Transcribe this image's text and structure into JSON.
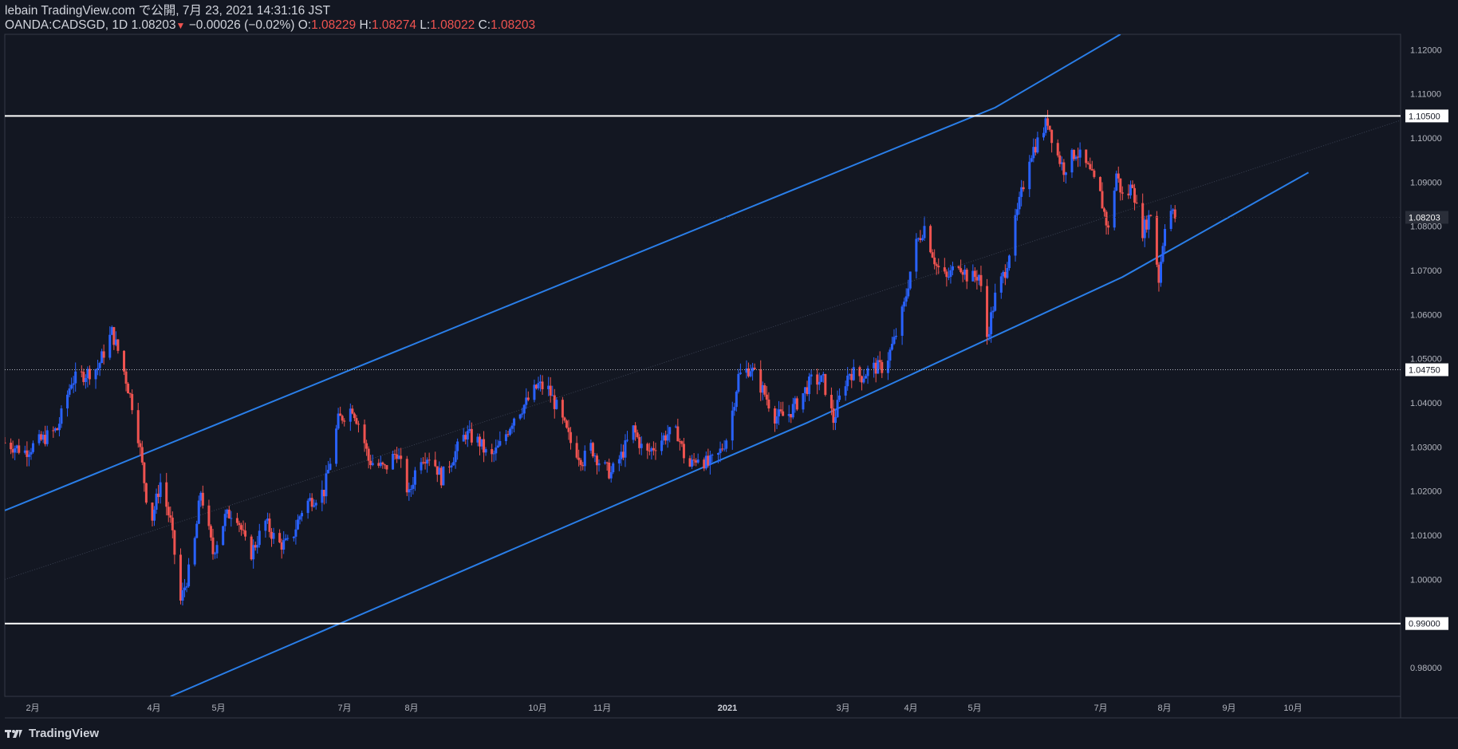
{
  "header": {
    "publish_line": "lebain TradingView.com で公開, 7月 23, 2021 14:31:16 JST",
    "symbol": "OANDA:CADSGD, 1D",
    "last": "1.08203",
    "change_arrow": "▼",
    "change": "−0.00026 (−0.02%)",
    "o_label": "O:",
    "o_value": "1.08229",
    "h_label": "H:",
    "h_value": "1.08274",
    "l_label": "L:",
    "l_value": "1.08022",
    "c_label": "C:",
    "c_value": "1.08203"
  },
  "footer": {
    "logo_text": "TradingView"
  },
  "colors": {
    "background": "#131722",
    "up": "#2962ff",
    "down": "#ef5350",
    "channel": "#2a7ee8",
    "level": "#ffffff"
  },
  "chart_data": {
    "type": "candlestick",
    "symbol": "OANDA:CADSGD",
    "interval": "1D",
    "y_range": [
      0.9735,
      1.1235
    ],
    "y_ticks": [
      "1.12000",
      "1.11000",
      "1.10000",
      "1.09000",
      "1.08000",
      "1.07000",
      "1.06000",
      "1.05000",
      "1.04000",
      "1.03000",
      "1.02000",
      "1.01000",
      "1.00000",
      "0.98000"
    ],
    "x_ticks": [
      {
        "label": "2月"
      },
      {
        "label": "4月"
      },
      {
        "label": "5月"
      },
      {
        "label": "7月"
      },
      {
        "label": "8月"
      },
      {
        "label": "10月"
      },
      {
        "label": "11月"
      },
      {
        "label": "2021",
        "bold": true
      },
      {
        "label": "3月"
      },
      {
        "label": "4月"
      },
      {
        "label": "5月"
      },
      {
        "label": "7月"
      },
      {
        "label": "8月"
      },
      {
        "label": "9月"
      },
      {
        "label": "10月"
      }
    ],
    "horizontal_levels": [
      {
        "price": 1.105,
        "label": "1.10500",
        "style": "solid"
      },
      {
        "price": 0.99,
        "label": "0.99000",
        "style": "solid"
      },
      {
        "price": 1.0475,
        "label": "1.04750",
        "style": "dotted"
      }
    ],
    "current_price": {
      "price": 1.08203,
      "label": "1.08203"
    },
    "channel": {
      "upper": [
        {
          "date": "2020-01-10",
          "price": 1.0156
        },
        {
          "date": "2021-05-14",
          "price": 1.1069
        },
        {
          "date": "2021-07-15",
          "price": 1.1235
        }
      ],
      "lower": [
        {
          "date": "2020-04-01",
          "price": 0.9735
        },
        {
          "date": "2021-02-10",
          "price": 1.0355
        },
        {
          "date": "2021-07-16",
          "price": 1.0685
        },
        {
          "date": "2021-10-16",
          "price": 1.0922
        }
      ]
    },
    "path": [
      [
        "2020-01-10",
        1.031
      ],
      [
        "2020-01-20",
        1.029
      ],
      [
        "2020-02-05",
        1.034
      ],
      [
        "2020-02-12",
        1.045
      ],
      [
        "2020-02-25",
        1.048
      ],
      [
        "2020-03-03",
        1.056
      ],
      [
        "2020-03-08",
        1.049
      ],
      [
        "2020-03-15",
        1.036
      ],
      [
        "2020-03-22",
        1.012
      ],
      [
        "2020-03-27",
        1.022
      ],
      [
        "2020-04-01",
        1.013
      ],
      [
        "2020-04-06",
        0.995
      ],
      [
        "2020-04-12",
        1.005
      ],
      [
        "2020-04-16",
        1.02
      ],
      [
        "2020-04-22",
        1.006
      ],
      [
        "2020-04-28",
        1.014
      ],
      [
        "2020-05-03",
        1.016
      ],
      [
        "2020-05-10",
        1.005
      ],
      [
        "2020-05-18",
        1.013
      ],
      [
        "2020-05-24",
        1.008
      ],
      [
        "2020-05-30",
        1.008
      ],
      [
        "2020-06-06",
        1.017
      ],
      [
        "2020-06-16",
        1.02
      ],
      [
        "2020-06-23",
        1.036
      ],
      [
        "2020-06-30",
        1.039
      ],
      [
        "2020-07-05",
        1.033
      ],
      [
        "2020-07-08",
        1.027
      ],
      [
        "2020-07-16",
        1.025
      ],
      [
        "2020-07-22",
        1.029
      ],
      [
        "2020-07-28",
        1.019
      ],
      [
        "2020-08-02",
        1.028
      ],
      [
        "2020-08-08",
        1.028
      ],
      [
        "2020-08-13",
        1.023
      ],
      [
        "2020-08-19",
        1.028
      ],
      [
        "2020-08-25",
        1.033
      ],
      [
        "2020-09-01",
        1.031
      ],
      [
        "2020-09-06",
        1.027
      ],
      [
        "2020-09-12",
        1.031
      ],
      [
        "2020-09-18",
        1.037
      ],
      [
        "2020-09-24",
        1.04
      ],
      [
        "2020-09-30",
        1.044
      ],
      [
        "2020-10-05",
        1.043
      ],
      [
        "2020-10-10",
        1.038
      ],
      [
        "2020-10-16",
        1.031
      ],
      [
        "2020-10-22",
        1.027
      ],
      [
        "2020-10-26",
        1.03
      ],
      [
        "2020-10-31",
        1.026
      ],
      [
        "2020-11-05",
        1.024
      ],
      [
        "2020-11-10",
        1.028
      ],
      [
        "2020-11-16",
        1.034
      ],
      [
        "2020-11-22",
        1.028
      ],
      [
        "2020-11-28",
        1.031
      ],
      [
        "2020-12-03",
        1.033
      ],
      [
        "2020-12-08",
        1.033
      ],
      [
        "2020-12-13",
        1.025
      ],
      [
        "2020-12-18",
        1.028
      ],
      [
        "2020-12-23",
        1.026
      ],
      [
        "2020-12-28",
        1.028
      ],
      [
        "2021-01-02",
        1.033
      ],
      [
        "2021-01-07",
        1.046
      ],
      [
        "2021-01-13",
        1.048
      ],
      [
        "2021-01-20",
        1.042
      ],
      [
        "2021-01-25",
        1.037
      ],
      [
        "2021-01-31",
        1.037
      ],
      [
        "2021-02-05",
        1.04
      ],
      [
        "2021-02-12",
        1.045
      ],
      [
        "2021-02-18",
        1.045
      ],
      [
        "2021-02-23",
        1.036
      ],
      [
        "2021-02-28",
        1.044
      ],
      [
        "2021-03-03",
        1.047
      ],
      [
        "2021-03-09",
        1.046
      ],
      [
        "2021-03-14",
        1.048
      ],
      [
        "2021-03-20",
        1.048
      ],
      [
        "2021-03-25",
        1.054
      ],
      [
        "2021-03-30",
        1.062
      ],
      [
        "2021-04-04",
        1.075
      ],
      [
        "2021-04-09",
        1.08
      ],
      [
        "2021-04-15",
        1.071
      ],
      [
        "2021-04-20",
        1.068
      ],
      [
        "2021-04-26",
        1.072
      ],
      [
        "2021-05-01",
        1.068
      ],
      [
        "2021-05-06",
        1.069
      ],
      [
        "2021-05-10",
        1.055
      ],
      [
        "2021-05-14",
        1.064
      ],
      [
        "2021-05-19",
        1.07
      ],
      [
        "2021-05-25",
        1.083
      ],
      [
        "2021-05-31",
        1.096
      ],
      [
        "2021-06-05",
        1.1
      ],
      [
        "2021-06-09",
        1.104
      ],
      [
        "2021-06-13",
        1.097
      ],
      [
        "2021-06-17",
        1.093
      ],
      [
        "2021-06-23",
        1.097
      ],
      [
        "2021-06-29",
        1.093
      ],
      [
        "2021-07-05",
        1.087
      ],
      [
        "2021-07-09",
        1.079
      ],
      [
        "2021-07-13",
        1.092
      ],
      [
        "2021-07-17",
        1.085
      ],
      [
        "2021-07-21",
        1.09
      ],
      [
        "2021-07-25",
        1.078
      ],
      [
        "2021-07-30",
        1.083
      ],
      [
        "2021-08-03",
        1.068
      ],
      [
        "2021-08-07",
        1.085
      ],
      [
        "2021-08-11",
        1.082
      ]
    ]
  }
}
